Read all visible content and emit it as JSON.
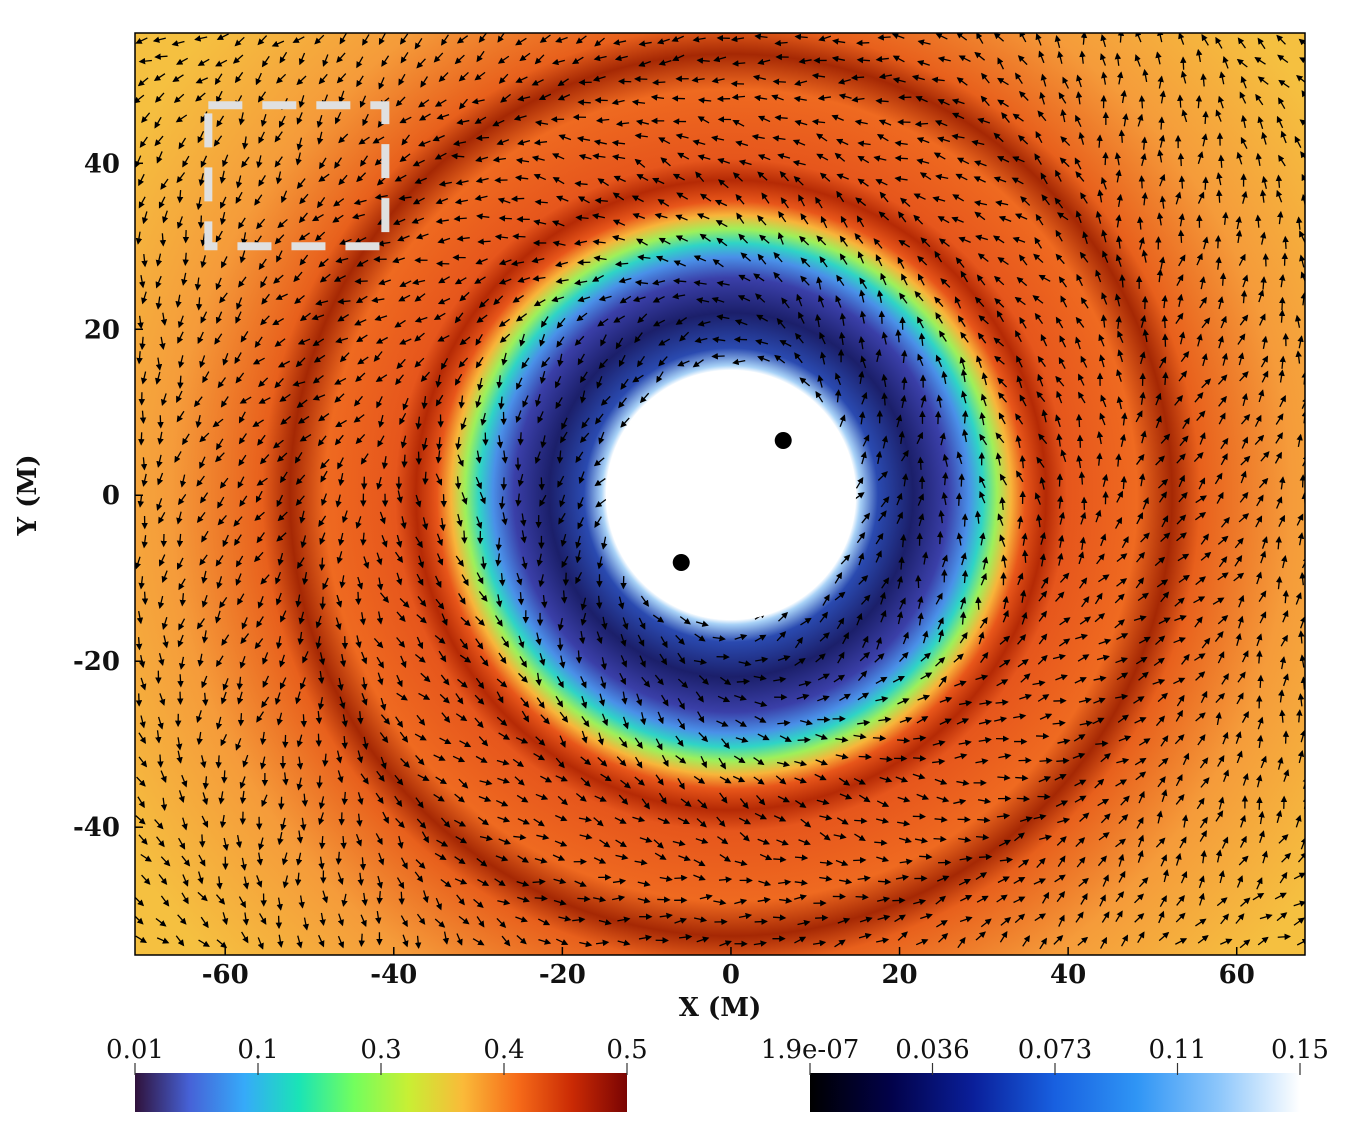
{
  "chart_data": {
    "type": "field",
    "x_label": "X (M)",
    "y_label": "Y (M)",
    "xlim": [
      -70.7,
      68.1
    ],
    "ylim": [
      -55.4,
      55.7
    ],
    "xticks": [
      -60,
      -40,
      -20,
      0,
      20,
      40,
      60
    ],
    "yticks": [
      -40,
      -20,
      0,
      20,
      40
    ],
    "points": {
      "x": [
        6.2,
        -5.9
      ],
      "y": [
        6.6,
        -8.1
      ],
      "color": "#000000"
    },
    "highlight_box": {
      "x": [
        -62,
        -41
      ],
      "y": [
        30,
        47
      ],
      "color": "#e0e0e0"
    },
    "colorbars": [
      {
        "ticks": [
          0.01,
          0.1,
          0.3,
          0.4,
          0.5
        ],
        "colors": [
          "#30123b",
          "#4662d7",
          "#36aaf9",
          "#1ae4b6",
          "#72fe5e",
          "#c8ef34",
          "#faba39",
          "#f66b19",
          "#ca2a04",
          "#7a0403"
        ]
      },
      {
        "ticks": [
          {
            "value": 1.9e-07,
            "label": "1.9e-07"
          },
          0.036,
          0.073,
          0.11,
          0.15
        ],
        "colors": [
          "#000000",
          "#02024a",
          "#0a1f9a",
          "#1860e0",
          "#2f95f5",
          "#8cc6fb",
          "#ffffff"
        ]
      }
    ]
  }
}
